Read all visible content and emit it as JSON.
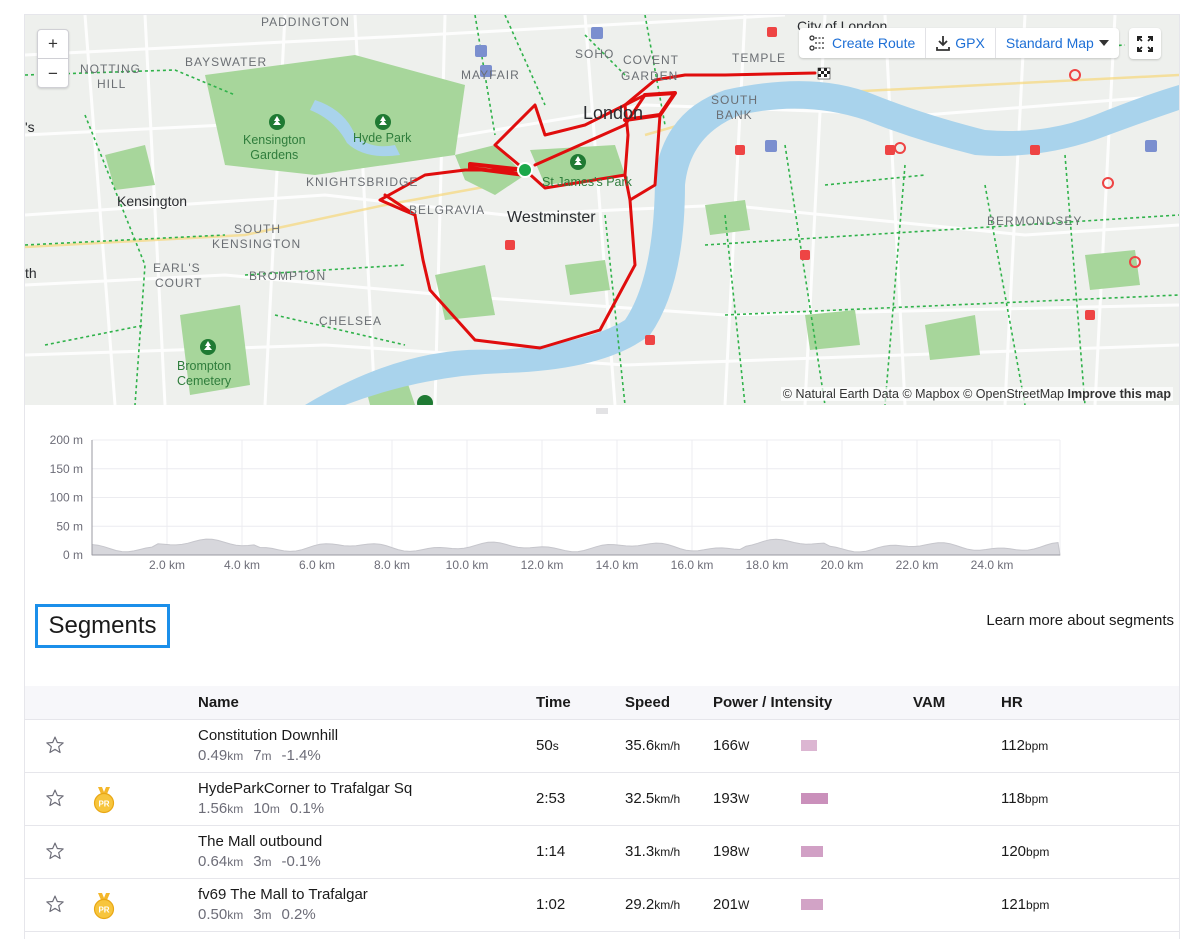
{
  "map": {
    "zoom_in": "+",
    "zoom_out": "−",
    "toolbar": {
      "create_route": "Create Route",
      "gpx": "GPX",
      "map_style": "Standard Map"
    },
    "labels": {
      "paddington": "PADDINGTON",
      "city_of_london": "City of London",
      "bayswater": "BAYSWATER",
      "notting": "NOTTING",
      "hill": "HILL",
      "mayfair": "MAYFAIR",
      "soho": "SOHO",
      "covent": "COVENT",
      "garden": "GARDEN",
      "temple": "TEMPLE",
      "london": "London",
      "south": "SOUTH",
      "bank": "BANK",
      "kensington_gardens_1": "Kensington",
      "kensington_gardens_2": "Gardens",
      "hyde_park": "Hyde Park",
      "knightsbridge": "KNIGHTSBRIDGE",
      "st_james": "St James's Park",
      "kensington": "Kensington",
      "belgravia": "BELGRAVIA",
      "westminster": "Westminster",
      "south_kensington_1": "SOUTH",
      "south_kensington_2": "KENSINGTON",
      "bermondsey": "BERMONDSEY",
      "earls": "EARL'S",
      "court": "COURT",
      "brompton": "BROMPTON",
      "chelsea": "CHELSEA",
      "brompton_cemetery_1": "Brompton",
      "brompton_cemetery_2": "Cemetery",
      "edge_s": "'s",
      "edge_th": "th"
    },
    "attribution": {
      "text": "© Natural Earth Data © Mapbox © OpenStreetMap",
      "improve": "Improve this map"
    },
    "route_color": "#e00d0d",
    "park_color": "#a7d69b",
    "water_color": "#a9d3ec"
  },
  "elevation": {
    "y_ticks": [
      "200 m",
      "150 m",
      "100 m",
      "50 m",
      "0 m"
    ],
    "x_ticks": [
      "2.0 km",
      "4.0 km",
      "6.0 km",
      "8.0 km",
      "10.0 km",
      "12.0 km",
      "14.0 km",
      "16.0 km",
      "18.0 km",
      "20.0 km",
      "22.0 km",
      "24.0 km"
    ]
  },
  "segments": {
    "title": "Segments",
    "learn_more": "Learn more about segments",
    "columns": {
      "name": "Name",
      "time": "Time",
      "speed": "Speed",
      "power": "Power / Intensity",
      "vam": "VAM",
      "hr": "HR"
    },
    "pr_badge": "PR",
    "rows": [
      {
        "name": "Constitution Downhill",
        "distance": "0.49",
        "distance_unit": "km",
        "elev": "7",
        "elev_unit": "m",
        "grade": "-1.4%",
        "time": "50",
        "time_unit": "s",
        "speed": "35.6",
        "speed_unit": "km/h",
        "power": "166",
        "power_unit": "W",
        "intensity": 0.3,
        "hr": "112",
        "hr_unit": "bpm",
        "pr": false
      },
      {
        "name": "HydeParkCorner to Trafalgar Sq",
        "distance": "1.56",
        "distance_unit": "km",
        "elev": "10",
        "elev_unit": "m",
        "grade": "0.1%",
        "time": "2:53",
        "time_unit": "",
        "speed": "32.5",
        "speed_unit": "km/h",
        "power": "193",
        "power_unit": "W",
        "intensity": 0.85,
        "hr": "118",
        "hr_unit": "bpm",
        "pr": true
      },
      {
        "name": "The Mall outbound",
        "distance": "0.64",
        "distance_unit": "km",
        "elev": "3",
        "elev_unit": "m",
        "grade": "-0.1%",
        "time": "1:14",
        "time_unit": "",
        "speed": "31.3",
        "speed_unit": "km/h",
        "power": "198",
        "power_unit": "W",
        "intensity": 0.62,
        "hr": "120",
        "hr_unit": "bpm",
        "pr": false
      },
      {
        "name": "fv69 The Mall to Trafalgar",
        "distance": "0.50",
        "distance_unit": "km",
        "elev": "3",
        "elev_unit": "m",
        "grade": "0.2%",
        "time": "1:02",
        "time_unit": "",
        "speed": "29.2",
        "speed_unit": "km/h",
        "power": "201",
        "power_unit": "W",
        "intensity": 0.58,
        "hr": "121",
        "hr_unit": "bpm",
        "pr": true
      }
    ]
  }
}
